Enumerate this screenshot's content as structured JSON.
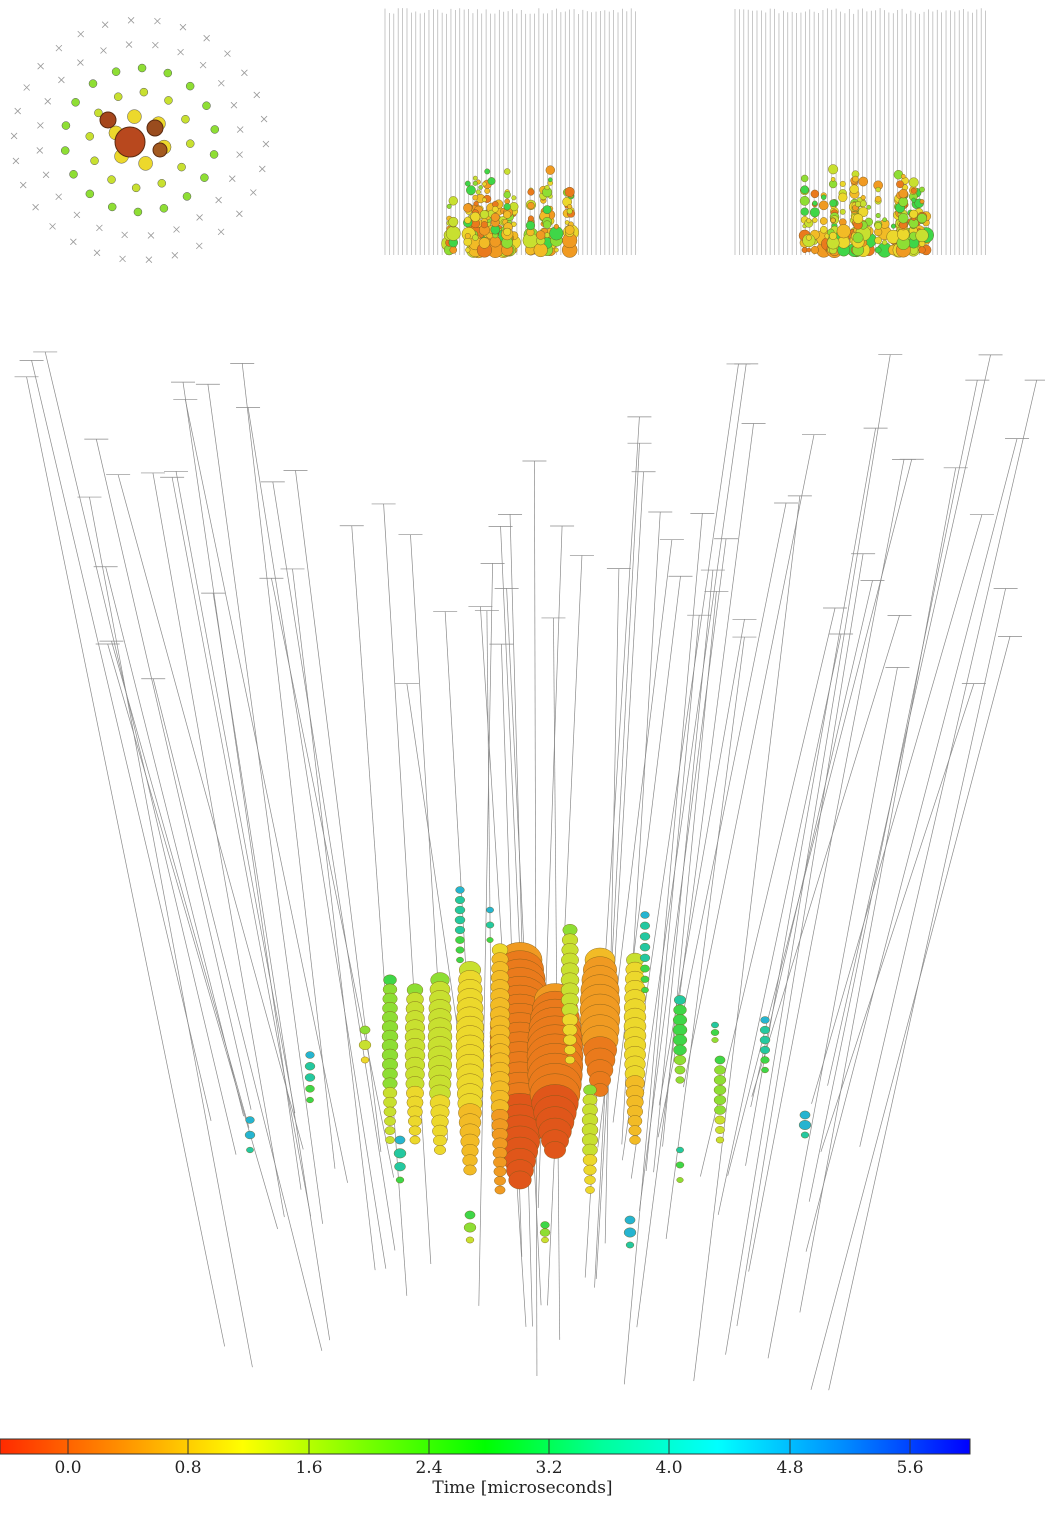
{
  "views": [
    "top-view",
    "side-view-1",
    "side-view-2",
    "perspective-view"
  ],
  "colorbar": {
    "title": "Time [microseconds]",
    "ticks": [
      "0.0",
      "0.8",
      "1.6",
      "2.4",
      "3.2",
      "4.0",
      "4.8",
      "5.6"
    ],
    "tick_values": [
      0.0,
      0.8,
      1.6,
      2.4,
      3.2,
      4.0,
      4.8,
      5.6
    ],
    "min": -0.5,
    "max": 6.0,
    "colors": [
      "#ff2a00",
      "#ff8c00",
      "#ffff00",
      "#7fff00",
      "#00ff00",
      "#00ff9a",
      "#00ffff",
      "#008cff",
      "#0000ff"
    ]
  }
}
